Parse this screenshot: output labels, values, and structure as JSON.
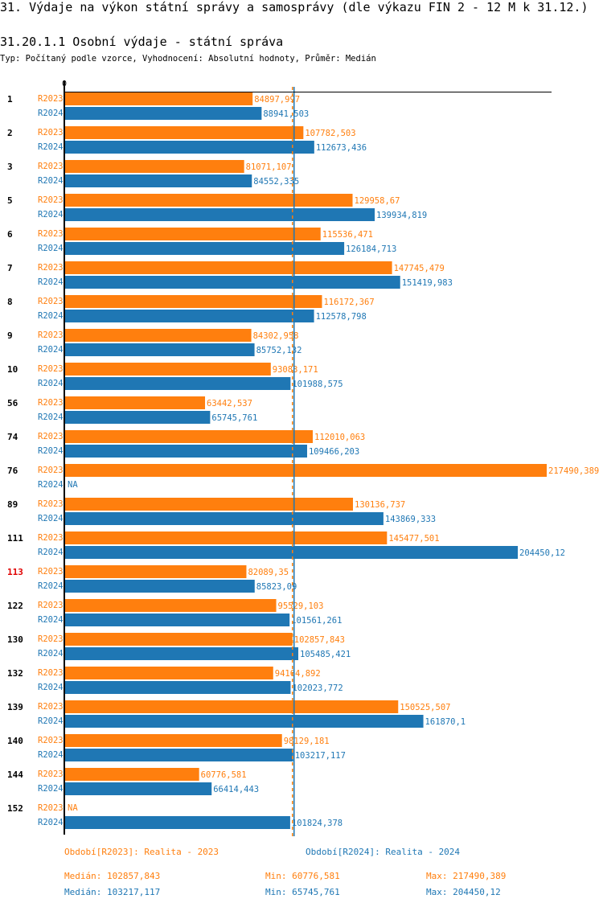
{
  "header": {
    "title": "31. Výdaje na výkon státní správy a samosprávy (dle výkazu FIN 2 - 12 M k 31.12.)",
    "subtitle": "31.20.1.1 Osobní výdaje - státní správa",
    "info": "Typ: Počítaný podle vzorce, Vyhodnocení: Absolutní hodnoty, Průměr: Medián"
  },
  "chart_data": {
    "type": "bar",
    "orientation": "horizontal",
    "axis_zero_label": "0",
    "xlim": [
      0,
      217490.389
    ],
    "colors": {
      "R2023": "#ff7f0e",
      "R2024": "#1f77b4",
      "highlight": "#e00000"
    },
    "highlight_category": "113",
    "series_labels": [
      "R2023",
      "R2024"
    ],
    "groups": [
      {
        "id": "1",
        "R2023": "84897,997",
        "R2024": "88941,503"
      },
      {
        "id": "2",
        "R2023": "107782,503",
        "R2024": "112673,436"
      },
      {
        "id": "3",
        "R2023": "81071,107",
        "R2024": "84552,335"
      },
      {
        "id": "5",
        "R2023": "129958,67",
        "R2024": "139934,819"
      },
      {
        "id": "6",
        "R2023": "115536,471",
        "R2024": "126184,713"
      },
      {
        "id": "7",
        "R2023": "147745,479",
        "R2024": "151419,983"
      },
      {
        "id": "8",
        "R2023": "116172,367",
        "R2024": "112578,798"
      },
      {
        "id": "9",
        "R2023": "84302,958",
        "R2024": "85752,132"
      },
      {
        "id": "10",
        "R2023": "93083,171",
        "R2024": "101988,575"
      },
      {
        "id": "56",
        "R2023": "63442,537",
        "R2024": "65745,761"
      },
      {
        "id": "74",
        "R2023": "112010,063",
        "R2024": "109466,203"
      },
      {
        "id": "76",
        "R2023": "217490,389",
        "R2024": "NA"
      },
      {
        "id": "89",
        "R2023": "130136,737",
        "R2024": "143869,333"
      },
      {
        "id": "111",
        "R2023": "145477,501",
        "R2024": "204450,12"
      },
      {
        "id": "113",
        "R2023": "82089,35",
        "R2024": "85823,09"
      },
      {
        "id": "122",
        "R2023": "95529,103",
        "R2024": "101561,261"
      },
      {
        "id": "130",
        "R2023": "102857,843",
        "R2024": "105485,421"
      },
      {
        "id": "132",
        "R2023": "94164,892",
        "R2024": "102023,772"
      },
      {
        "id": "139",
        "R2023": "150525,507",
        "R2024": "161870,1"
      },
      {
        "id": "140",
        "R2023": "98129,181",
        "R2024": "103217,117"
      },
      {
        "id": "144",
        "R2023": "60776,581",
        "R2024": "66414,443"
      },
      {
        "id": "152",
        "R2023": "NA",
        "R2024": "101824,378"
      }
    ],
    "median_lines": {
      "R2023": 102857.843,
      "R2024": 103217.117
    }
  },
  "legend": {
    "r2023": "Období[R2023]: Realita - 2023",
    "r2024": "Období[R2024]: Realita - 2024"
  },
  "stats": {
    "r2023": {
      "median": "Medián: 102857,843",
      "min": "Min: 60776,581",
      "max": "Max: 217490,389"
    },
    "r2024": {
      "median": "Medián: 103217,117",
      "min": "Min: 65745,761",
      "max": "Max: 204450,12"
    }
  }
}
